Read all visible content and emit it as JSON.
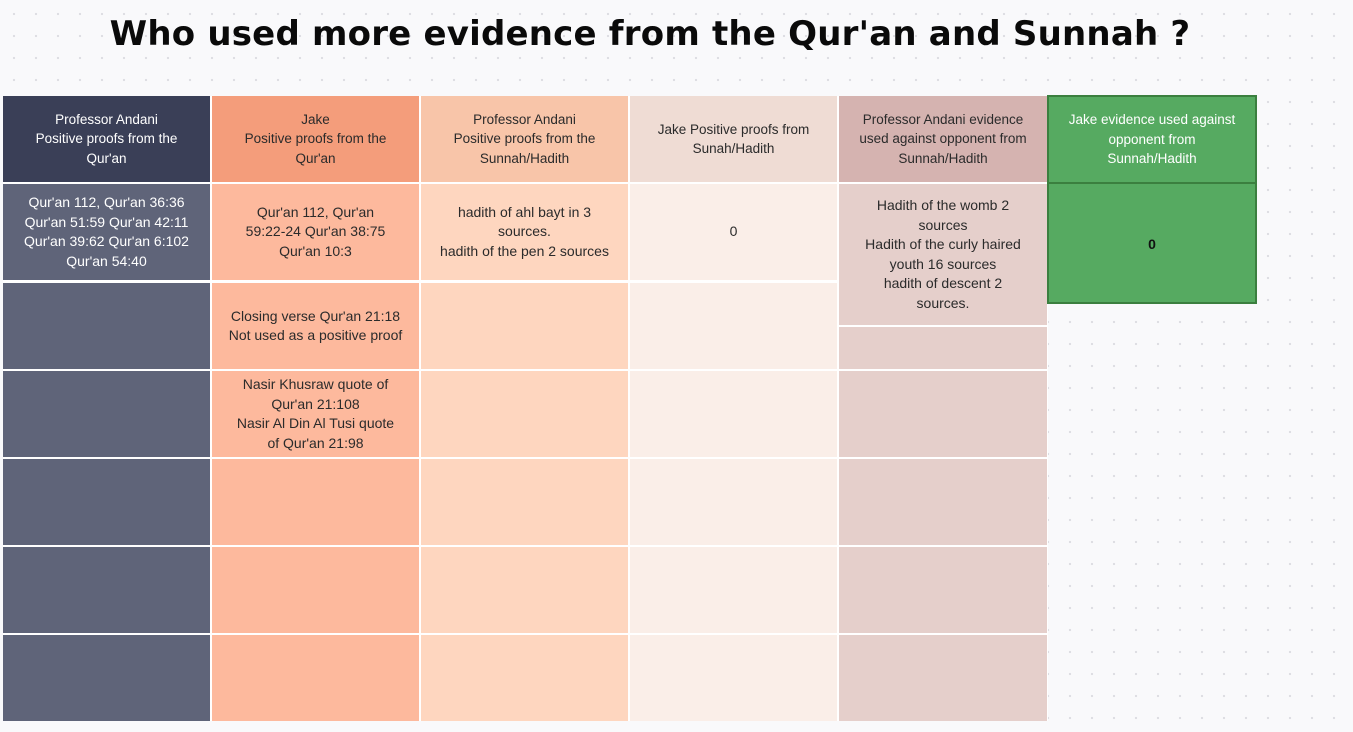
{
  "title": "Who used more evidence from the Qur'an and Sunnah ?",
  "colors": {
    "col1_header": "#3a3f57",
    "col1_body": "#5f6479",
    "col2_header": "#f49d7b",
    "col2_body": "#fdb99d",
    "col3_header": "#f8c5a9",
    "col3_body": "#fed6bf",
    "col4_header": "#efdcd4",
    "col4_body": "#faeee8",
    "col5_header": "#d5b3b0",
    "col5_body": "#e5cfcb",
    "col6": "#56aa61"
  },
  "columns": [
    {
      "header": "Professor Andani\nPositive proofs from the\nQur'an",
      "cells": [
        "Qur'an 112, Qur'an 36:36\nQur'an 51:59 Qur'an 42:11\nQur'an 39:62 Qur'an 6:102\nQur'an 54:40",
        "",
        "",
        "",
        "",
        ""
      ]
    },
    {
      "header": "Jake\nPositive proofs from the\nQur'an",
      "cells": [
        "Qur'an 112, Qur'an\n59:22-24 Qur'an 38:75\nQur'an 10:3",
        "Closing verse Qur'an 21:18\nNot used as a positive proof",
        "Nasir Khusraw quote of\nQur'an 21:108\nNasir Al Din Al Tusi quote\nof Qur'an 21:98",
        "",
        "",
        ""
      ]
    },
    {
      "header": "Professor Andani\nPositive proofs from the\nSunnah/Hadith",
      "cells": [
        "hadith of ahl bayt in 3\nsources.\nhadith of the pen 2 sources",
        "",
        "",
        "",
        "",
        ""
      ]
    },
    {
      "header": "Jake Positive proofs from\nSunah/Hadith",
      "cells": [
        "0",
        "",
        "",
        "",
        "",
        ""
      ]
    },
    {
      "header": "Professor Andani evidence\nused against opponent from\nSunnah/Hadith",
      "cells": [
        "Hadith of the womb 2\nsources\nHadith of the curly haired\nyouth 16 sources\nhadith of descent 2\nsources.",
        "",
        "",
        "",
        "",
        ""
      ]
    },
    {
      "header": "Jake evidence used against\nopponent from\nSunnah/Hadith",
      "cells": [
        "0"
      ]
    }
  ]
}
